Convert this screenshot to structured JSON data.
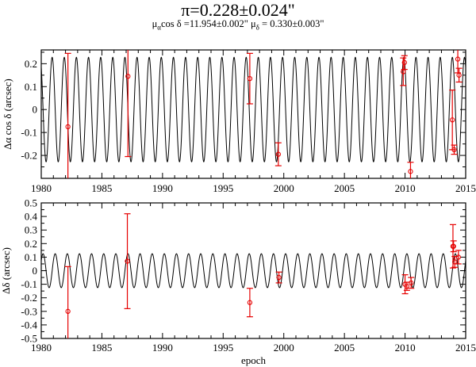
{
  "title": "π=0.228±0.024\"",
  "subtitle": {
    "mu_alpha_symbol": "μ",
    "mu_alpha_sub": "α",
    "mu_alpha_text": "cos δ =11.954±0.002\"",
    "mu_delta_symbol": "μ",
    "mu_delta_sub": "δ",
    "mu_delta_text": "= 0.330±0.003\""
  },
  "chart_data": [
    {
      "type": "line",
      "name": "ra-panel",
      "ylabel": "Δα cos δ (arcsec)",
      "xlabel": "",
      "xlim": [
        1980,
        2015
      ],
      "ylim": [
        -0.3,
        0.26
      ],
      "xticks": [
        1980,
        1985,
        1990,
        1995,
        2000,
        2005,
        2010,
        2015
      ],
      "yticks": [
        -0.2,
        -0.1,
        0,
        0.1,
        0.2
      ],
      "ytick_labels": [
        "-0.2",
        "-0.1",
        "0",
        "0.1",
        "0.2"
      ],
      "xtick_labels": [
        "1980",
        "1985",
        "1990",
        "1995",
        "2000",
        "2005",
        "2010",
        "2015"
      ],
      "model": {
        "amplitude": 0.228,
        "period_years": 1.0,
        "phase_peak_fraction": 0.9
      },
      "points": [
        {
          "x": 1982.2,
          "y": -0.075,
          "err": 0.32
        },
        {
          "x": 1987.15,
          "y": 0.145,
          "err": 0.35
        },
        {
          "x": 1997.2,
          "y": 0.135,
          "err": 0.11
        },
        {
          "x": 1999.55,
          "y": -0.195,
          "err": 0.05
        },
        {
          "x": 2009.85,
          "y": 0.165,
          "err": 0.06
        },
        {
          "x": 2009.95,
          "y": 0.205,
          "err": 0.03
        },
        {
          "x": 2010.45,
          "y": -0.27,
          "err": 0.04
        },
        {
          "x": 2013.9,
          "y": -0.045,
          "err": 0.13
        },
        {
          "x": 2014.05,
          "y": -0.175,
          "err": 0.02
        },
        {
          "x": 2014.35,
          "y": 0.22,
          "err": 0.06
        },
        {
          "x": 2014.45,
          "y": 0.15,
          "err": 0.03
        }
      ]
    },
    {
      "type": "line",
      "name": "dec-panel",
      "ylabel": "Δδ (arcsec)",
      "xlabel": "epoch",
      "xlim": [
        1980,
        2015
      ],
      "ylim": [
        -0.5,
        0.5
      ],
      "xticks": [
        1980,
        1985,
        1990,
        1995,
        2000,
        2005,
        2010,
        2015
      ],
      "yticks": [
        -0.5,
        -0.4,
        -0.3,
        -0.2,
        -0.1,
        0,
        0.1,
        0.2,
        0.3,
        0.4,
        0.5
      ],
      "ytick_labels": [
        "-0.5",
        "-0.4",
        "-0.3",
        "-0.2",
        "-0.1",
        "0",
        "0.1",
        "0.2",
        "0.3",
        "0.4",
        "0.5"
      ],
      "xtick_labels": [
        "1980",
        "1985",
        "1990",
        "1995",
        "2000",
        "2005",
        "2010",
        "2015"
      ],
      "model": {
        "amplitude": 0.125,
        "period_years": 1.0,
        "phase_peak_fraction": 0.15
      },
      "points": [
        {
          "x": 1982.2,
          "y": -0.3,
          "err": 0.33
        },
        {
          "x": 1987.1,
          "y": 0.07,
          "err": 0.35
        },
        {
          "x": 1997.2,
          "y": -0.235,
          "err": 0.105
        },
        {
          "x": 1999.6,
          "y": -0.05,
          "err": 0.04
        },
        {
          "x": 2010.0,
          "y": -0.1,
          "err": 0.07
        },
        {
          "x": 2010.15,
          "y": -0.115,
          "err": 0.03
        },
        {
          "x": 2010.5,
          "y": -0.09,
          "err": 0.04
        },
        {
          "x": 2013.95,
          "y": 0.18,
          "err": 0.16
        },
        {
          "x": 2014.0,
          "y": 0.18,
          "err": 0.04
        },
        {
          "x": 2014.1,
          "y": 0.065,
          "err": 0.04
        },
        {
          "x": 2014.4,
          "y": 0.1,
          "err": 0.05
        }
      ]
    }
  ]
}
